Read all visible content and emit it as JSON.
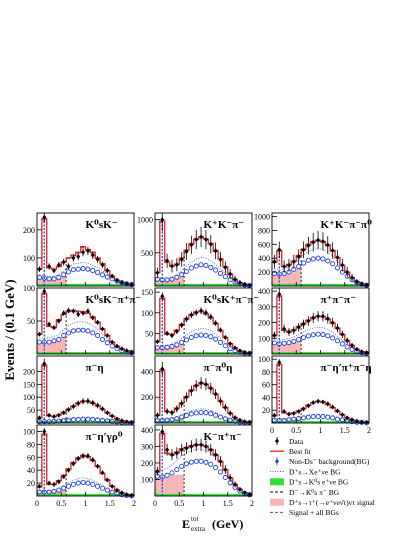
{
  "figure": {
    "ylabel": "Events / (0.1 GeV)",
    "xlabel_main": "E",
    "xlabel_sup": "tot",
    "xlabel_sub": "extra",
    "xlabel_unit": "(GeV)"
  },
  "legend": {
    "items": [
      {
        "key": "data",
        "label": "Data"
      },
      {
        "key": "fit",
        "label": "Best fit"
      },
      {
        "key": "nonds",
        "label": "Non-Ds⁻ background(BG)"
      },
      {
        "key": "xenu",
        "label": "D⁺s→Xe⁺νe BG"
      },
      {
        "key": "k0",
        "label": "D⁺s→K⁰s e⁺νe BG"
      },
      {
        "key": "k0pi",
        "label": "D⁻→K⁰s π⁻ BG"
      },
      {
        "key": "signal",
        "label": "D⁺s→τ⁺(→e⁺νeν̄τ)ντ signal"
      },
      {
        "key": "sum",
        "label": "Signal + all BGs"
      }
    ],
    "colors": {
      "data": "#000000",
      "fit": "#e8231c",
      "nonds": "#1f3fd6",
      "xenu": "#3355cc",
      "k0": "#33dd33",
      "k0pi": "#000000",
      "signal": "#f6b6b6",
      "sum": "#3355cc"
    }
  },
  "chart_data": [
    {
      "type": "histogram",
      "title": "K⁰sK⁻",
      "col": 0,
      "row": 0,
      "ylim": [
        0,
        260
      ],
      "yticks": [
        100,
        200
      ],
      "xlim": [
        0,
        2
      ],
      "xticks": [
        0,
        0.5,
        1,
        1.5,
        2
      ],
      "x": [
        0.05,
        0.15,
        0.25,
        0.35,
        0.45,
        0.55,
        0.65,
        0.75,
        0.85,
        0.95,
        1.05,
        1.15,
        1.25,
        1.35,
        1.45,
        1.55,
        1.65,
        1.75,
        1.85,
        1.95
      ],
      "data": [
        60,
        245,
        70,
        55,
        75,
        85,
        70,
        100,
        105,
        120,
        125,
        110,
        95,
        75,
        55,
        35,
        20,
        12,
        8,
        5
      ],
      "fit": [
        60,
        240,
        65,
        60,
        70,
        85,
        100,
        110,
        120,
        140,
        130,
        120,
        100,
        80,
        55,
        35,
        20,
        12,
        8,
        5
      ],
      "nonds": [
        30,
        28,
        25,
        25,
        30,
        40,
        50,
        58,
        60,
        62,
        60,
        55,
        48,
        40,
        32,
        25,
        18,
        12,
        8,
        5
      ]
    },
    {
      "type": "histogram",
      "title": "K⁺K⁻π⁻",
      "col": 1,
      "row": 0,
      "ylim": [
        0,
        1100
      ],
      "yticks": [
        500,
        1000
      ],
      "xlim": [
        0,
        2
      ],
      "xticks": [
        0,
        0.5,
        1,
        1.5,
        2
      ],
      "x": [
        0.05,
        0.15,
        0.25,
        0.35,
        0.45,
        0.55,
        0.65,
        0.75,
        0.85,
        0.95,
        1.05,
        1.15,
        1.25,
        1.35,
        1.45,
        1.55,
        1.65,
        1.75,
        1.85,
        1.95
      ],
      "data": [
        200,
        1000,
        380,
        300,
        320,
        400,
        520,
        620,
        700,
        740,
        700,
        630,
        530,
        400,
        280,
        180,
        100,
        50,
        25,
        10
      ],
      "fit": [
        200,
        980,
        360,
        300,
        330,
        420,
        540,
        640,
        710,
        740,
        710,
        640,
        530,
        410,
        290,
        180,
        100,
        50,
        25,
        10
      ],
      "nonds": [
        100,
        90,
        90,
        100,
        130,
        170,
        220,
        270,
        300,
        320,
        310,
        280,
        240,
        190,
        140,
        95,
        60,
        30,
        15,
        5
      ]
    },
    {
      "type": "histogram",
      "title": "K⁺K⁻π⁻π⁰",
      "col": 2,
      "row": 0,
      "ylim": [
        0,
        1050
      ],
      "yticks": [
        200,
        400,
        600,
        800,
        1000
      ],
      "xlim": [
        0,
        2
      ],
      "xticks": [
        0,
        0.5,
        1,
        1.5,
        2
      ],
      "x": [
        0.05,
        0.15,
        0.25,
        0.35,
        0.45,
        0.55,
        0.65,
        0.75,
        0.85,
        0.95,
        1.05,
        1.15,
        1.25,
        1.35,
        1.45,
        1.55,
        1.65,
        1.75,
        1.85,
        1.95
      ],
      "data": [
        350,
        520,
        280,
        300,
        350,
        420,
        520,
        580,
        630,
        660,
        640,
        590,
        510,
        410,
        300,
        200,
        120,
        60,
        30,
        15
      ],
      "fit": [
        340,
        510,
        280,
        310,
        360,
        440,
        530,
        600,
        640,
        660,
        640,
        590,
        510,
        410,
        300,
        200,
        120,
        60,
        30,
        15
      ],
      "nonds": [
        180,
        170,
        180,
        200,
        240,
        280,
        330,
        370,
        390,
        400,
        390,
        360,
        320,
        260,
        200,
        140,
        90,
        50,
        25,
        10
      ]
    },
    {
      "type": "histogram",
      "title": "K⁰sK⁻π⁺π⁻",
      "col": 0,
      "row": 1,
      "ylim": [
        0,
        100
      ],
      "yticks": [
        50,
        100
      ],
      "xlim": [
        0,
        2
      ],
      "xticks": [
        0,
        0.5,
        1,
        1.5,
        2
      ],
      "x": [
        0.05,
        0.15,
        0.25,
        0.35,
        0.45,
        0.55,
        0.65,
        0.75,
        0.85,
        0.95,
        1.05,
        1.15,
        1.25,
        1.35,
        1.45,
        1.55,
        1.65,
        1.75,
        1.85,
        1.95
      ],
      "data": [
        30,
        95,
        45,
        40,
        50,
        62,
        66,
        65,
        60,
        62,
        65,
        55,
        48,
        38,
        28,
        18,
        12,
        8,
        5,
        3
      ],
      "fit": [
        30,
        92,
        42,
        40,
        52,
        60,
        65,
        66,
        65,
        64,
        62,
        56,
        48,
        38,
        28,
        18,
        12,
        8,
        5,
        3
      ],
      "nonds": [
        18,
        18,
        18,
        20,
        22,
        28,
        32,
        35,
        36,
        36,
        35,
        32,
        28,
        22,
        17,
        12,
        8,
        5,
        3,
        2
      ]
    },
    {
      "type": "histogram",
      "title": "K⁰sK⁺π⁻π⁻",
      "col": 1,
      "row": 1,
      "ylim": [
        0,
        160
      ],
      "yticks": [
        50,
        100,
        150
      ],
      "xlim": [
        0,
        2
      ],
      "xticks": [
        0,
        0.5,
        1,
        1.5,
        2
      ],
      "x": [
        0.05,
        0.15,
        0.25,
        0.35,
        0.45,
        0.55,
        0.65,
        0.75,
        0.85,
        0.95,
        1.05,
        1.15,
        1.25,
        1.35,
        1.45,
        1.55,
        1.65,
        1.75,
        1.85,
        1.95
      ],
      "data": [
        30,
        140,
        50,
        45,
        55,
        70,
        85,
        95,
        100,
        105,
        100,
        90,
        75,
        58,
        40,
        25,
        15,
        8,
        4,
        2
      ],
      "fit": [
        30,
        135,
        48,
        48,
        58,
        72,
        86,
        96,
        102,
        104,
        98,
        88,
        74,
        57,
        40,
        25,
        15,
        8,
        4,
        2
      ],
      "nonds": [
        15,
        15,
        16,
        18,
        22,
        28,
        34,
        40,
        44,
        46,
        45,
        42,
        36,
        28,
        20,
        13,
        8,
        4,
        2,
        1
      ]
    },
    {
      "type": "histogram",
      "title": "π⁺π⁻π⁻",
      "col": 2,
      "row": 1,
      "ylim": [
        0,
        420
      ],
      "yticks": [
        100,
        200,
        300,
        400
      ],
      "xlim": [
        0,
        2
      ],
      "xticks": [
        0,
        0.5,
        1,
        1.5,
        2
      ],
      "x": [
        0.05,
        0.15,
        0.25,
        0.35,
        0.45,
        0.55,
        0.65,
        0.75,
        0.85,
        0.95,
        1.05,
        1.15,
        1.25,
        1.35,
        1.45,
        1.55,
        1.65,
        1.75,
        1.85,
        1.95
      ],
      "data": [
        120,
        380,
        160,
        140,
        150,
        170,
        190,
        210,
        230,
        240,
        240,
        225,
        200,
        165,
        125,
        85,
        55,
        30,
        15,
        8
      ],
      "fit": [
        115,
        370,
        150,
        140,
        155,
        175,
        195,
        215,
        232,
        242,
        238,
        222,
        198,
        165,
        125,
        85,
        55,
        30,
        15,
        8
      ],
      "nonds": [
        70,
        65,
        68,
        72,
        80,
        92,
        104,
        115,
        122,
        126,
        124,
        116,
        102,
        84,
        64,
        45,
        29,
        16,
        8,
        4
      ]
    },
    {
      "type": "histogram",
      "title": "π⁻η",
      "col": 0,
      "row": 2,
      "ylim": [
        0,
        260
      ],
      "yticks": [
        50,
        100,
        150,
        200
      ],
      "xlim": [
        0,
        2
      ],
      "xticks": [
        0,
        0.5,
        1,
        1.5,
        2
      ],
      "x": [
        0.05,
        0.15,
        0.25,
        0.35,
        0.45,
        0.55,
        0.65,
        0.75,
        0.85,
        0.95,
        1.05,
        1.15,
        1.25,
        1.35,
        1.45,
        1.55,
        1.65,
        1.75,
        1.85,
        1.95
      ],
      "data": [
        20,
        230,
        30,
        25,
        30,
        40,
        52,
        64,
        76,
        84,
        85,
        78,
        68,
        55,
        40,
        27,
        16,
        9,
        5,
        2
      ],
      "fit": [
        20,
        225,
        28,
        25,
        32,
        42,
        54,
        66,
        78,
        85,
        84,
        77,
        67,
        54,
        40,
        27,
        16,
        9,
        5,
        2
      ],
      "nonds": [
        5,
        5,
        5,
        6,
        7,
        9,
        11,
        13,
        14,
        15,
        15,
        14,
        12,
        10,
        8,
        6,
        4,
        2,
        1,
        1
      ]
    },
    {
      "type": "histogram",
      "title": "π⁻π⁰η",
      "col": 1,
      "row": 2,
      "ylim": [
        0,
        520
      ],
      "yticks": [
        200,
        400
      ],
      "xlim": [
        0,
        2
      ],
      "xticks": [
        0,
        0.5,
        1,
        1.5,
        2
      ],
      "x": [
        0.05,
        0.15,
        0.25,
        0.35,
        0.45,
        0.55,
        0.65,
        0.75,
        0.85,
        0.95,
        1.05,
        1.15,
        1.25,
        1.35,
        1.45,
        1.55,
        1.65,
        1.75,
        1.85,
        1.95
      ],
      "data": [
        60,
        420,
        90,
        80,
        110,
        150,
        200,
        250,
        290,
        310,
        300,
        270,
        225,
        170,
        120,
        75,
        42,
        22,
        10,
        5
      ],
      "fit": [
        58,
        410,
        88,
        84,
        115,
        155,
        205,
        255,
        292,
        312,
        302,
        270,
        224,
        170,
        120,
        75,
        42,
        22,
        10,
        5
      ],
      "nonds": [
        20,
        20,
        22,
        26,
        34,
        46,
        58,
        70,
        78,
        82,
        80,
        72,
        60,
        46,
        33,
        22,
        13,
        7,
        3,
        2
      ]
    },
    {
      "type": "histogram",
      "title": "π⁻η′π⁺π⁻η",
      "col": 2,
      "row": 2,
      "ylim": [
        0,
        105
      ],
      "yticks": [
        20,
        40,
        60,
        80,
        100
      ],
      "xlim": [
        0,
        2
      ],
      "xticks": [
        0,
        0.5,
        1,
        1.5,
        2
      ],
      "x": [
        0.05,
        0.15,
        0.25,
        0.35,
        0.45,
        0.55,
        0.65,
        0.75,
        0.85,
        0.95,
        1.05,
        1.15,
        1.25,
        1.35,
        1.45,
        1.55,
        1.65,
        1.75,
        1.85,
        1.95
      ],
      "data": [
        12,
        95,
        18,
        14,
        15,
        18,
        22,
        27,
        32,
        34,
        33,
        30,
        25,
        19,
        13,
        8,
        5,
        3,
        1,
        1
      ],
      "fit": [
        11,
        92,
        16,
        14,
        16,
        19,
        23,
        28,
        32,
        34,
        33,
        29,
        24,
        18,
        13,
        8,
        5,
        3,
        1,
        1
      ],
      "nonds": [
        4,
        4,
        4,
        5,
        6,
        7,
        8,
        9,
        10,
        10,
        10,
        9,
        8,
        6,
        5,
        3,
        2,
        1,
        1,
        0
      ]
    },
    {
      "type": "histogram",
      "title": "π⁻η′γρ⁰",
      "col": 0,
      "row": 3,
      "ylim": [
        0,
        110
      ],
      "yticks": [
        20,
        40,
        60,
        80,
        100
      ],
      "xlim": [
        0,
        2
      ],
      "xticks": [
        0,
        0.5,
        1,
        1.5,
        2
      ],
      "x": [
        0.05,
        0.15,
        0.25,
        0.35,
        0.45,
        0.55,
        0.65,
        0.75,
        0.85,
        0.95,
        1.05,
        1.15,
        1.25,
        1.35,
        1.45,
        1.55,
        1.65,
        1.75,
        1.85,
        1.95
      ],
      "data": [
        15,
        100,
        20,
        18,
        22,
        30,
        40,
        50,
        58,
        62,
        62,
        56,
        46,
        36,
        25,
        15,
        9,
        5,
        2,
        1
      ],
      "fit": [
        14,
        96,
        18,
        18,
        24,
        32,
        42,
        52,
        59,
        63,
        61,
        55,
        46,
        35,
        25,
        15,
        9,
        5,
        2,
        1
      ],
      "nonds": [
        6,
        6,
        6,
        7,
        9,
        12,
        15,
        18,
        20,
        21,
        20,
        18,
        15,
        12,
        9,
        6,
        4,
        2,
        1,
        0
      ]
    },
    {
      "type": "histogram",
      "title": "K⁻π⁺π⁻",
      "col": 1,
      "row": 3,
      "ylim": [
        0,
        430
      ],
      "yticks": [
        100,
        200,
        300,
        400
      ],
      "xlim": [
        0,
        2
      ],
      "xticks": [
        0,
        0.5,
        1,
        1.5,
        2
      ],
      "x": [
        0.05,
        0.15,
        0.25,
        0.35,
        0.45,
        0.55,
        0.65,
        0.75,
        0.85,
        0.95,
        1.05,
        1.15,
        1.25,
        1.35,
        1.45,
        1.55,
        1.65,
        1.75,
        1.85,
        1.95
      ],
      "data": [
        150,
        390,
        280,
        250,
        260,
        280,
        290,
        300,
        310,
        310,
        300,
        280,
        250,
        210,
        160,
        110,
        70,
        40,
        20,
        10
      ],
      "fit": [
        145,
        380,
        260,
        250,
        265,
        285,
        295,
        305,
        312,
        312,
        302,
        282,
        250,
        208,
        160,
        110,
        70,
        40,
        20,
        10
      ],
      "nonds": [
        120,
        115,
        125,
        140,
        160,
        180,
        195,
        205,
        210,
        210,
        204,
        192,
        172,
        145,
        112,
        80,
        52,
        30,
        15,
        7
      ]
    }
  ]
}
